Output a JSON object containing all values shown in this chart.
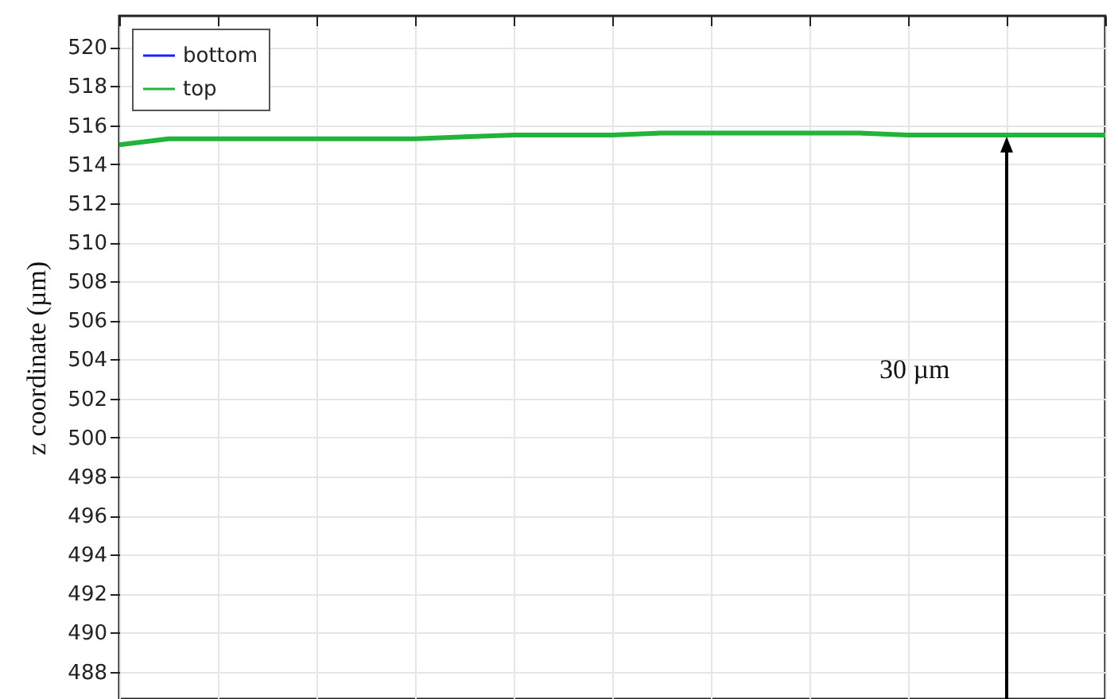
{
  "chart_data": {
    "type": "line",
    "ylabel": "z coordinate (µm)",
    "categories": [
      null,
      null,
      null,
      null,
      null,
      null,
      null,
      null,
      null,
      null,
      null,
      null,
      null,
      null,
      null,
      null,
      null,
      null,
      null,
      null,
      null
    ],
    "series": [
      {
        "name": "bottom",
        "color": "#2020ff",
        "values": [
          null,
          null,
          null,
          null,
          null,
          null,
          null,
          null,
          null,
          null,
          null,
          null,
          null,
          null,
          null,
          null,
          null,
          null,
          null,
          null,
          null
        ]
      },
      {
        "name": "top",
        "color": "#22b43a",
        "values": [
          515.0,
          515.3,
          515.3,
          515.3,
          515.3,
          515.3,
          515.3,
          515.4,
          515.5,
          515.5,
          515.5,
          515.6,
          515.6,
          515.6,
          515.6,
          515.6,
          515.5,
          515.5,
          515.5,
          515.5,
          515.5
        ]
      }
    ],
    "ylim": [
      486.6,
      521.6
    ],
    "yticks": [
      488,
      490,
      492,
      494,
      496,
      498,
      500,
      502,
      504,
      506,
      508,
      510,
      512,
      514,
      516,
      518,
      520
    ],
    "grid": true,
    "legend": "top left",
    "tick_labels": "y",
    "line_style": "solid",
    "marker": "none",
    "annotations": [
      "30 µm"
    ]
  }
}
